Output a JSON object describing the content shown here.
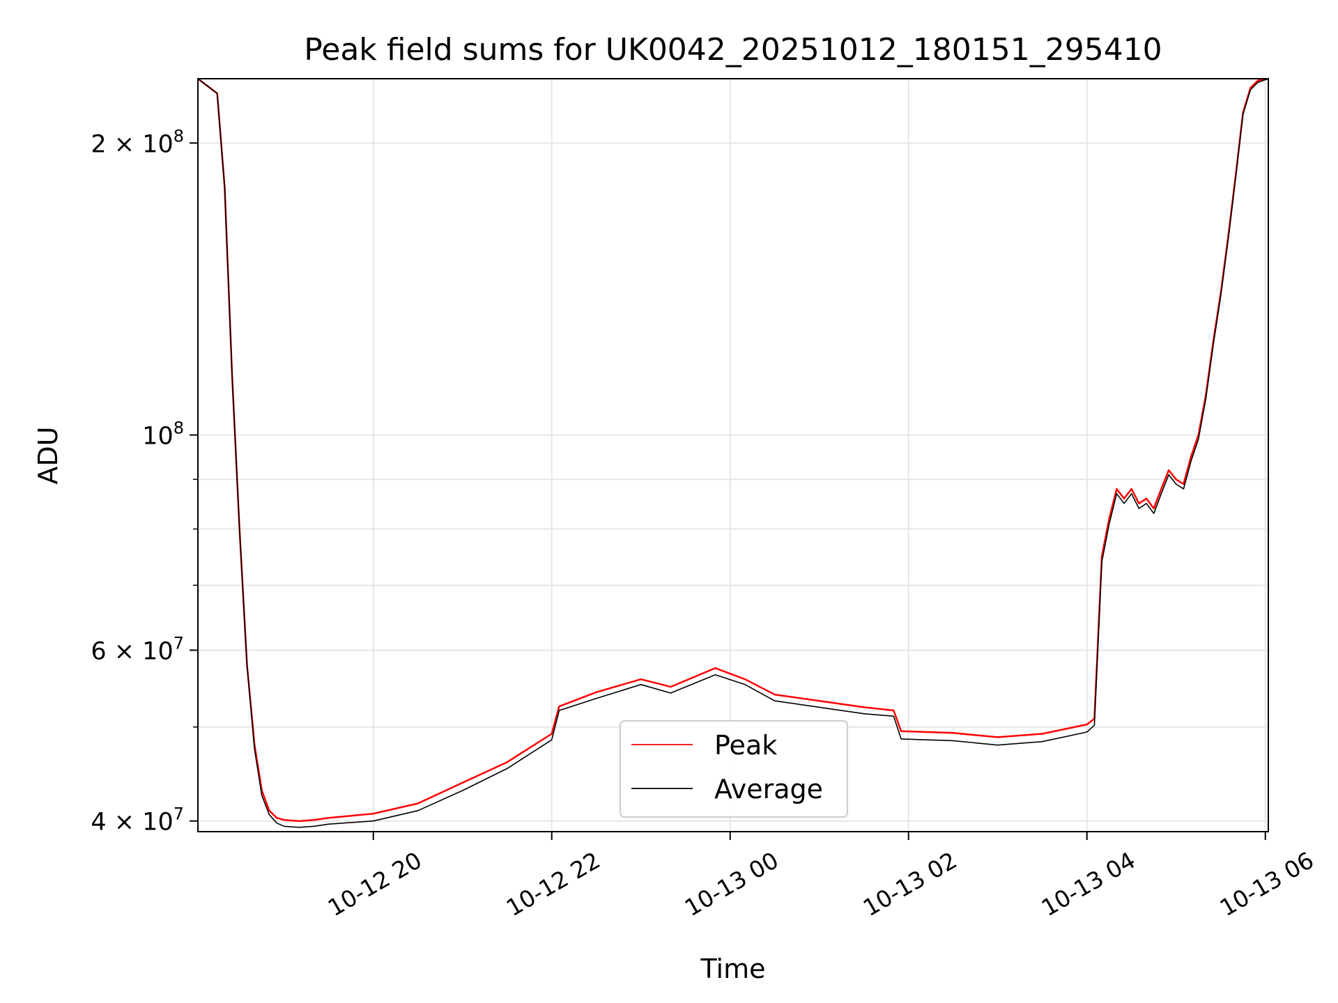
{
  "chart_data": {
    "type": "line",
    "title": "Peak field sums for UK0042_20251012_180151_295410",
    "xlabel": "Time",
    "ylabel": "ADU",
    "yscale": "log",
    "grid": true,
    "legend_position": "lower center",
    "x_ticks": [
      "10-12 20",
      "10-12 22",
      "10-13 00",
      "10-13 02",
      "10-13 04",
      "10-13 06"
    ],
    "xlim": [
      "2025-10-12 18:02",
      "2025-10-13 06:02"
    ],
    "ylim": [
      39000000,
      233000000
    ],
    "y_major_ticks": [
      {
        "value": 40000000,
        "label": "4 × 10^7"
      },
      {
        "value": 60000000,
        "label": "6 × 10^7"
      },
      {
        "value": 100000000,
        "label": "10^8"
      },
      {
        "value": 200000000,
        "label": "2 × 10^8"
      }
    ],
    "y_minor_ticks": [
      50000000,
      70000000,
      80000000,
      90000000
    ],
    "x": [
      "2025-10-12 18:02",
      "2025-10-12 18:15",
      "2025-10-12 18:20",
      "2025-10-12 18:25",
      "2025-10-12 18:30",
      "2025-10-12 18:35",
      "2025-10-12 18:40",
      "2025-10-12 18:45",
      "2025-10-12 18:50",
      "2025-10-12 18:55",
      "2025-10-12 19:00",
      "2025-10-12 19:10",
      "2025-10-12 19:20",
      "2025-10-12 19:30",
      "2025-10-12 20:00",
      "2025-10-12 20:30",
      "2025-10-12 21:00",
      "2025-10-12 21:30",
      "2025-10-12 22:00",
      "2025-10-12 22:05",
      "2025-10-12 22:30",
      "2025-10-12 23:00",
      "2025-10-12 23:20",
      "2025-10-12 23:50",
      "2025-10-13 00:10",
      "2025-10-13 00:30",
      "2025-10-13 01:00",
      "2025-10-13 01:30",
      "2025-10-13 01:50",
      "2025-10-13 01:55",
      "2025-10-13 02:30",
      "2025-10-13 03:00",
      "2025-10-13 03:30",
      "2025-10-13 04:00",
      "2025-10-13 04:05",
      "2025-10-13 04:10",
      "2025-10-13 04:15",
      "2025-10-13 04:20",
      "2025-10-13 04:25",
      "2025-10-13 04:30",
      "2025-10-13 04:35",
      "2025-10-13 04:40",
      "2025-10-13 04:45",
      "2025-10-13 04:50",
      "2025-10-13 04:55",
      "2025-10-13 05:00",
      "2025-10-13 05:05",
      "2025-10-13 05:10",
      "2025-10-13 05:15",
      "2025-10-13 05:20",
      "2025-10-13 05:25",
      "2025-10-13 05:30",
      "2025-10-13 05:35",
      "2025-10-13 05:40",
      "2025-10-13 05:45",
      "2025-10-13 05:50",
      "2025-10-13 05:55",
      "2025-10-13 06:02"
    ],
    "series": [
      {
        "name": "Peak",
        "color": "#ff0000",
        "values": [
          233000000,
          225000000,
          180000000,
          115000000,
          80000000,
          58000000,
          48000000,
          43000000,
          41000000,
          40300000,
          40100000,
          40000000,
          40100000,
          40300000,
          40700000,
          41700000,
          43800000,
          46000000,
          49200000,
          52500000,
          54300000,
          56000000,
          55000000,
          57500000,
          56000000,
          54000000,
          53200000,
          52400000,
          52000000,
          49500000,
          49300000,
          48800000,
          49200000,
          50300000,
          51000000,
          75000000,
          82000000,
          88000000,
          86000000,
          88000000,
          85000000,
          86000000,
          84000000,
          88000000,
          92000000,
          90000000,
          89000000,
          95000000,
          100000000,
          110000000,
          125000000,
          140000000,
          160000000,
          185000000,
          215000000,
          228000000,
          232000000,
          233000000
        ]
      },
      {
        "name": "Average",
        "color": "#000000",
        "values": [
          233000000,
          225000000,
          180000000,
          115000000,
          80000000,
          58000000,
          47500000,
          42500000,
          40600000,
          39800000,
          39500000,
          39400000,
          39500000,
          39700000,
          40000000,
          41000000,
          43000000,
          45300000,
          48500000,
          52000000,
          53500000,
          55300000,
          54200000,
          56600000,
          55300000,
          53200000,
          52400000,
          51600000,
          51300000,
          48600000,
          48400000,
          47900000,
          48300000,
          49400000,
          50200000,
          74000000,
          81000000,
          87000000,
          85000000,
          87000000,
          84000000,
          85000000,
          83000000,
          87000000,
          91000000,
          89000000,
          88000000,
          94000000,
          99000000,
          109000000,
          124000000,
          139000000,
          159000000,
          184000000,
          214000000,
          227000000,
          231000000,
          233000000
        ]
      }
    ]
  }
}
